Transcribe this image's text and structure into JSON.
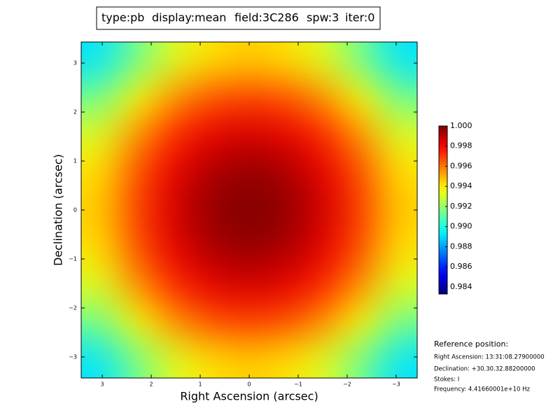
{
  "chart_data": {
    "type": "heatmap",
    "title_parts": [
      {
        "text": "type:pb",
        "color": "#000000"
      },
      {
        "text": "display:mean",
        "color": "#ff0000"
      },
      {
        "text": "field:3C286",
        "color": "#000000"
      },
      {
        "text": "spw:3",
        "color": "#000000"
      },
      {
        "text": "iter:0",
        "color": "#000000"
      }
    ],
    "x_label": "Right Ascension (arcsec)",
    "y_label": "Declination (arcsec)",
    "xlim": [
      3.43,
      -3.43
    ],
    "ylim": [
      -3.43,
      3.43
    ],
    "xticks": [
      3,
      2,
      1,
      0,
      {
        "value": -1,
        "label": "−1"
      },
      {
        "value": -2,
        "label": "−2"
      },
      {
        "value": -3,
        "label": "−3"
      }
    ],
    "yticks": [
      {
        "value": -3,
        "label": "−3"
      },
      {
        "value": -2,
        "label": "−2"
      },
      {
        "value": -1,
        "label": "−1"
      },
      0,
      1,
      2,
      3
    ],
    "cmap": "jet",
    "clim": [
      0.9833,
      1.0
    ],
    "cticks": [
      {
        "value": 0.984,
        "label": "0.984"
      },
      {
        "value": 0.986,
        "label": "0.986"
      },
      {
        "value": 0.988,
        "label": "0.988"
      },
      {
        "value": 0.99,
        "label": "0.990"
      },
      {
        "value": 0.992,
        "label": "0.992"
      },
      {
        "value": 0.994,
        "label": "0.994"
      },
      {
        "value": 0.996,
        "label": "0.996"
      },
      {
        "value": 0.998,
        "label": "0.998"
      },
      {
        "value": 1.0,
        "label": "1.000"
      }
    ],
    "z": [
      [
        0.9891,
        0.9914,
        0.9932,
        0.9942,
        0.9945,
        0.9942,
        0.9932,
        0.9914,
        0.9891
      ],
      [
        0.9914,
        0.9938,
        0.9955,
        0.9966,
        0.9969,
        0.9966,
        0.9955,
        0.9938,
        0.9914
      ],
      [
        0.9932,
        0.9955,
        0.9973,
        0.9983,
        0.9986,
        0.9983,
        0.9973,
        0.9955,
        0.9932
      ],
      [
        0.9942,
        0.9966,
        0.9983,
        0.9993,
        0.9997,
        0.9993,
        0.9983,
        0.9966,
        0.9942
      ],
      [
        0.9945,
        0.9969,
        0.9986,
        0.9997,
        1.0,
        0.9997,
        0.9986,
        0.9969,
        0.9945
      ],
      [
        0.9942,
        0.9966,
        0.9983,
        0.9993,
        0.9997,
        0.9993,
        0.9983,
        0.9966,
        0.9942
      ],
      [
        0.9932,
        0.9955,
        0.9973,
        0.9983,
        0.9986,
        0.9983,
        0.9973,
        0.9955,
        0.9932
      ],
      [
        0.9914,
        0.9938,
        0.9955,
        0.9966,
        0.9969,
        0.9966,
        0.9955,
        0.9938,
        0.9914
      ],
      [
        0.9891,
        0.9914,
        0.9932,
        0.9942,
        0.9945,
        0.9942,
        0.9932,
        0.9914,
        0.9891
      ]
    ],
    "annotations": [
      "Reference position:",
      "Right Ascension: 13:31:08.27900000",
      "Declination: +30.30.32.88200000",
      "Stokes: I",
      "Frequency: 4.41660001e+10 Hz"
    ]
  }
}
